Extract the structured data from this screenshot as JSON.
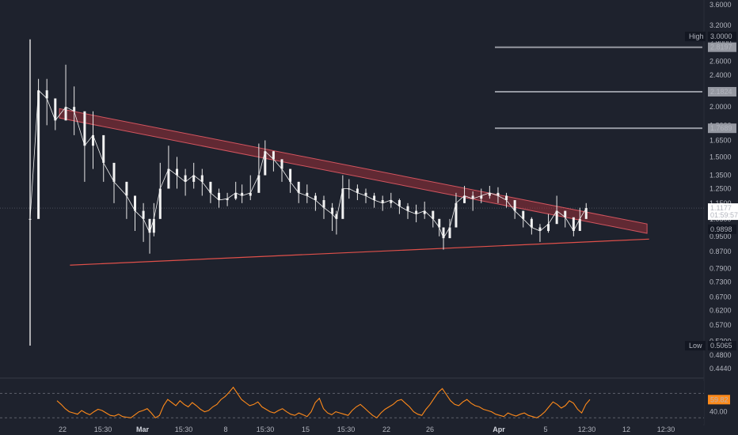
{
  "chart_data": [
    {
      "type": "candlestick",
      "title": "",
      "y_scale": "log",
      "ylim": [
        0.42,
        3.7
      ],
      "y_ticks": [
        "3.6000",
        "3.2000",
        "2.9000",
        "2.6000",
        "2.4000",
        "2.2000",
        "2.0000",
        "1.8000",
        "1.6500",
        "1.5000",
        "1.3500",
        "1.2500",
        "1.1500",
        "1.0500",
        "0.9500",
        "0.8700",
        "0.7900",
        "0.7300",
        "0.6700",
        "0.6200",
        "0.5700",
        "0.5200",
        "0.4800",
        "0.4440"
      ],
      "y_tick_values": [
        3.6,
        3.2,
        2.9,
        2.6,
        2.4,
        2.2,
        2.0,
        1.8,
        1.65,
        1.5,
        1.35,
        1.25,
        1.15,
        1.05,
        0.95,
        0.87,
        0.79,
        0.73,
        0.67,
        0.62,
        0.57,
        0.52,
        0.48,
        0.444
      ],
      "x_ticks": [
        "22",
        "15:30",
        "Mar",
        "15:30",
        "8",
        "15:30",
        "15",
        "15:30",
        "22",
        "26",
        "Apr",
        "5",
        "12:30",
        "12",
        "12:30"
      ],
      "x_tick_bold": [
        "Mar",
        "Apr"
      ],
      "high_label": {
        "label": "High",
        "value": "3.0000",
        "y": 3.0
      },
      "low_label": {
        "label": "Low",
        "value": "0.5065",
        "y": 0.5065
      },
      "current_price": {
        "value": "1.1177",
        "countdown": "01:59:57",
        "y": 1.1177
      },
      "reference_price": {
        "value": "0.9898",
        "y": 0.9898
      },
      "horizontal_levels": [
        {
          "value": "2.8197",
          "y": 2.8197
        },
        {
          "value": "2.1824",
          "y": 2.1824
        },
        {
          "value": "1.7689",
          "y": 1.7689
        }
      ],
      "price_path": [
        [
          0.0,
          1.05,
          2.95,
          0.5065
        ],
        [
          0.02,
          2.2,
          2.35,
          1.9
        ],
        [
          0.04,
          2.1,
          2.35,
          1.8
        ],
        [
          0.06,
          1.85,
          2.1,
          1.75
        ],
        [
          0.085,
          2.0,
          2.55,
          1.9
        ],
        [
          0.105,
          1.95,
          2.25,
          1.7
        ],
        [
          0.13,
          1.6,
          1.9,
          1.3
        ],
        [
          0.15,
          1.7,
          1.95,
          1.4
        ],
        [
          0.175,
          1.45,
          1.55,
          1.3
        ],
        [
          0.2,
          1.3,
          1.4,
          1.15
        ],
        [
          0.23,
          1.2,
          1.3,
          1.05
        ],
        [
          0.25,
          1.1,
          1.2,
          0.98
        ],
        [
          0.27,
          1.05,
          1.15,
          0.92
        ],
        [
          0.285,
          0.97,
          1.05,
          0.86
        ],
        [
          0.295,
          1.05,
          1.15,
          0.95
        ],
        [
          0.31,
          1.25,
          1.45,
          1.15
        ],
        [
          0.33,
          1.4,
          1.6,
          1.25
        ],
        [
          0.35,
          1.35,
          1.5,
          1.25
        ],
        [
          0.37,
          1.3,
          1.4,
          1.2
        ],
        [
          0.39,
          1.35,
          1.45,
          1.25
        ],
        [
          0.41,
          1.3,
          1.4,
          1.2
        ],
        [
          0.43,
          1.22,
          1.3,
          1.15
        ],
        [
          0.45,
          1.17,
          1.25,
          1.12
        ],
        [
          0.47,
          1.18,
          1.22,
          1.13
        ],
        [
          0.49,
          1.22,
          1.3,
          1.17
        ],
        [
          0.505,
          1.2,
          1.28,
          1.15
        ],
        [
          0.525,
          1.22,
          1.35,
          1.17
        ],
        [
          0.545,
          1.35,
          1.62,
          1.3
        ],
        [
          0.56,
          1.55,
          1.65,
          1.45
        ],
        [
          0.58,
          1.48,
          1.55,
          1.38
        ],
        [
          0.6,
          1.4,
          1.48,
          1.3
        ],
        [
          0.62,
          1.3,
          1.38,
          1.22
        ],
        [
          0.64,
          1.22,
          1.3,
          1.15
        ],
        [
          0.66,
          1.2,
          1.28,
          1.15
        ],
        [
          0.68,
          1.17,
          1.22,
          1.1
        ],
        [
          0.7,
          1.12,
          1.2,
          1.05
        ],
        [
          0.72,
          1.08,
          1.15,
          0.98
        ],
        [
          0.73,
          1.05,
          1.1,
          0.96
        ],
        [
          0.745,
          1.25,
          1.35,
          1.15
        ],
        [
          0.76,
          1.25,
          1.32,
          1.18
        ],
        [
          0.78,
          1.22,
          1.28,
          1.17
        ],
        [
          0.8,
          1.2,
          1.25,
          1.15
        ],
        [
          0.82,
          1.17,
          1.22,
          1.12
        ],
        [
          0.84,
          1.15,
          1.2,
          1.1
        ],
        [
          0.86,
          1.17,
          1.22,
          1.12
        ],
        [
          0.88,
          1.13,
          1.18,
          1.08
        ],
        [
          0.9,
          1.1,
          1.15,
          1.05
        ],
        [
          0.92,
          1.08,
          1.14,
          1.03
        ],
        [
          0.94,
          1.1,
          1.16,
          1.05
        ],
        [
          0.96,
          1.05,
          1.1,
          1.0
        ],
        [
          0.975,
          1.0,
          1.05,
          0.95
        ],
        [
          0.985,
          0.94,
          0.98,
          0.88
        ],
        [
          1.0,
          1.0,
          1.05,
          0.97
        ],
        [
          1.015,
          1.15,
          1.22,
          1.08
        ],
        [
          1.035,
          1.2,
          1.27,
          1.15
        ],
        [
          1.055,
          1.18,
          1.23,
          1.1
        ],
        [
          1.075,
          1.2,
          1.25,
          1.15
        ],
        [
          1.095,
          1.22,
          1.27,
          1.18
        ],
        [
          1.115,
          1.2,
          1.26,
          1.15
        ],
        [
          1.135,
          1.17,
          1.22,
          1.12
        ],
        [
          1.155,
          1.1,
          1.15,
          1.05
        ],
        [
          1.175,
          1.05,
          1.1,
          1.0
        ],
        [
          1.195,
          1.0,
          1.06,
          0.96
        ],
        [
          1.215,
          0.98,
          1.02,
          0.92
        ],
        [
          1.235,
          1.02,
          1.08,
          0.97
        ],
        [
          1.255,
          1.1,
          1.2,
          1.05
        ],
        [
          1.275,
          1.06,
          1.1,
          1.0
        ],
        [
          1.295,
          0.98,
          1.04,
          0.95
        ],
        [
          1.31,
          1.05,
          1.12,
          1.0
        ],
        [
          1.325,
          1.1177,
          1.15,
          1.05
        ]
      ],
      "trendlines": [
        {
          "name": "descending-resistance-band",
          "from": [
            0.07,
            1.98
          ],
          "to": [
            1.47,
            1.02
          ],
          "band_ratio": 1.055
        },
        {
          "name": "ascending-support",
          "from": [
            0.095,
            0.805
          ],
          "to": [
            1.475,
            0.935
          ]
        }
      ]
    },
    {
      "type": "line",
      "name": "RSI",
      "ylim": [
        20,
        90
      ],
      "y_ticks": [
        "40.00"
      ],
      "y_tick_values": [
        40
      ],
      "upper_band": 70,
      "lower_band": 30,
      "last_value": {
        "value": "59.82",
        "y": 59.82
      },
      "values": [
        58,
        52,
        45,
        40,
        38,
        36,
        42,
        38,
        35,
        40,
        44,
        42,
        38,
        34,
        33,
        36,
        32,
        31,
        30,
        35,
        40,
        42,
        45,
        38,
        30,
        34,
        50,
        60,
        55,
        50,
        58,
        52,
        48,
        55,
        50,
        44,
        40,
        42,
        48,
        52,
        60,
        65,
        72,
        80,
        70,
        60,
        55,
        50,
        52,
        56,
        48,
        44,
        40,
        38,
        42,
        45,
        40,
        36,
        34,
        38,
        35,
        32,
        40,
        55,
        62,
        45,
        38,
        35,
        40,
        38,
        36,
        34,
        42,
        48,
        52,
        46,
        40,
        34,
        30,
        38,
        44,
        48,
        52,
        58,
        60,
        54,
        48,
        40,
        36,
        34,
        44,
        52,
        62,
        72,
        78,
        68,
        58,
        52,
        50,
        56,
        60,
        54,
        50,
        48,
        44,
        42,
        40,
        36,
        34,
        32,
        38,
        35,
        33,
        36,
        38,
        34,
        32,
        30,
        34,
        40,
        48,
        56,
        52,
        46,
        50,
        58,
        54,
        44,
        38,
        52,
        60
      ]
    }
  ],
  "layout_notes": {}
}
